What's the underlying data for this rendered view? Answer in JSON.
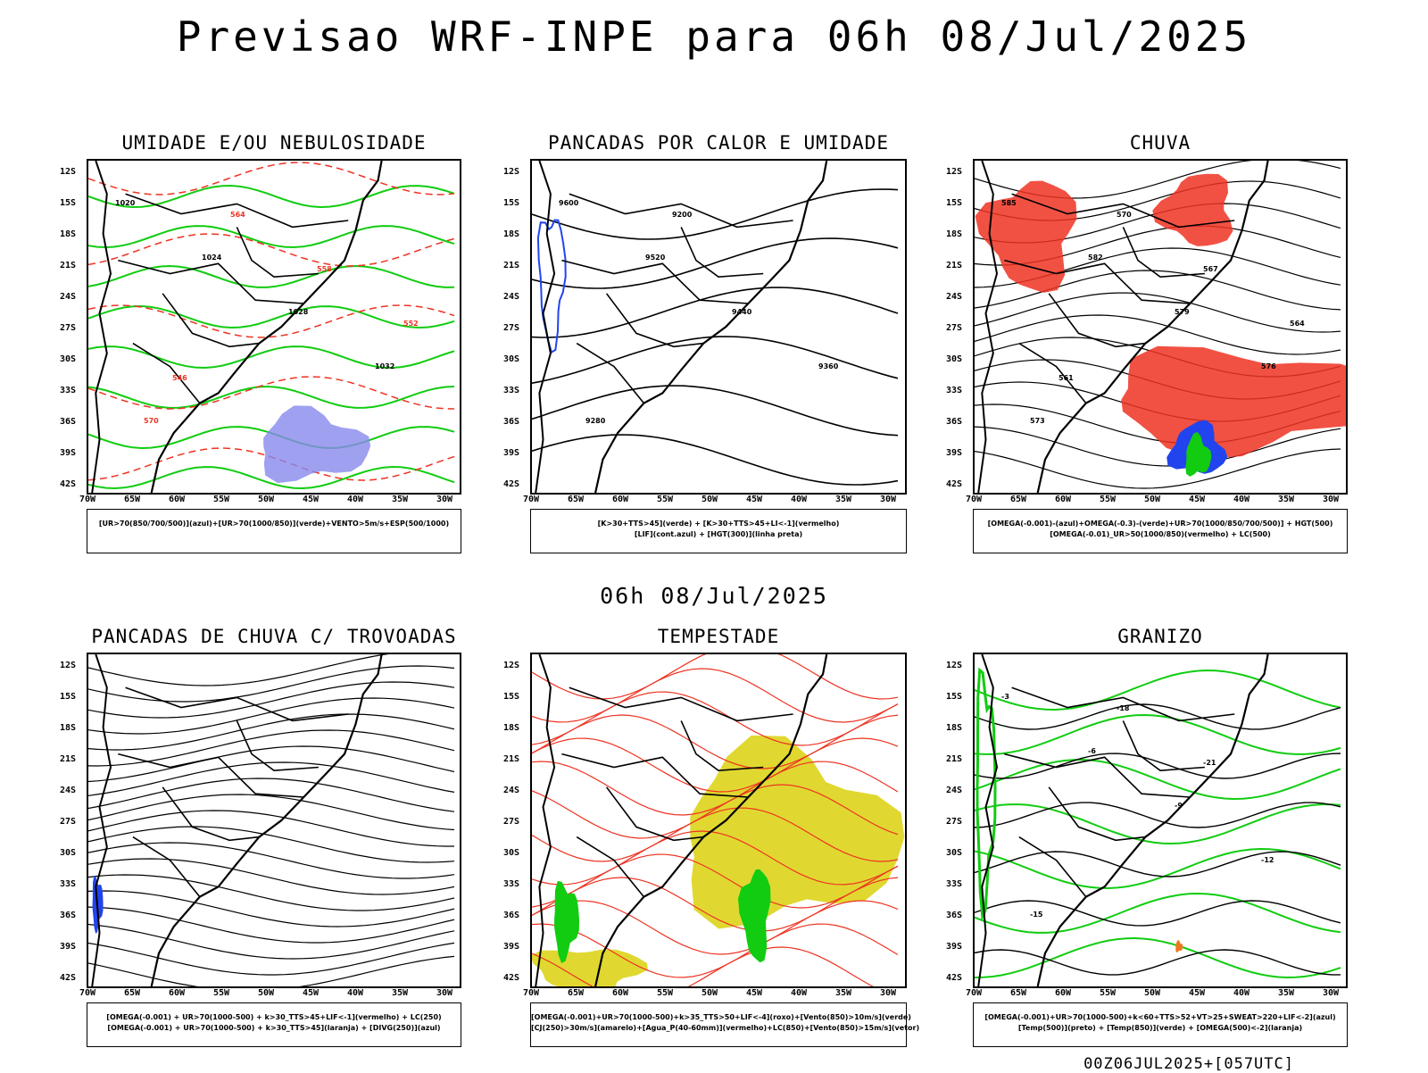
{
  "page": {
    "title": "Previsao WRF-INPE  para 06h 08/Jul/2025",
    "subtitle": "06h 08/Jul/2025",
    "footer": "00Z06JUL2025+[057UTC]"
  },
  "axes": {
    "lat_labels": [
      "12S",
      "15S",
      "18S",
      "21S",
      "24S",
      "27S",
      "30S",
      "33S",
      "36S",
      "39S",
      "42S"
    ],
    "lon_labels": [
      "70W",
      "65W",
      "60W",
      "55W",
      "50W",
      "45W",
      "40W",
      "35W",
      "30W"
    ]
  },
  "panels": [
    {
      "title": "UMIDADE E/OU NEBULOSIDADE",
      "legend": [
        "[UR>70(850/700/500)](azul)+[UR>70(1000/850)](verde)+VENTO>5m/s+ESP(500/1000)"
      ],
      "contour_labels": [
        "1020",
        "1024",
        "1028",
        "1032",
        "570",
        "564",
        "558",
        "552",
        "546"
      ]
    },
    {
      "title": "PANCADAS POR CALOR E UMIDADE",
      "legend": [
        "[K>30+TTS>45](verde) + [K>30+TTS>45+LI<-1](vermelho)",
        "[LIF](cont.azul) + [HGT(300)](linha preta)"
      ],
      "contour_labels": [
        "9600",
        "9520",
        "9440",
        "9360",
        "9280",
        "9200"
      ]
    },
    {
      "title": "CHUVA",
      "legend": [
        "[OMEGA(-0.001)-(azul)+OMEGA(-0.3)-(verde)+UR>70(1000/850/700/500)] + HGT(500)",
        "[OMEGA(-0.01)_UR>50(1000/850)(vermelho) + LC(500)"
      ],
      "contour_labels": [
        "585",
        "582",
        "579",
        "576",
        "573",
        "570",
        "567",
        "564",
        "561"
      ]
    },
    {
      "title": "PANCADAS DE CHUVA C/ TROVOADAS",
      "legend": [
        "[OMEGA(-0.001) + UR>70(1000-500) + k>30_TTS>45+LIF<-1](vermelho) + LC(250)",
        "[OMEGA(-0.001) + UR>70(1000-500) + k>30_TTS>45](laranja) + [DIVG(250)](azul)"
      ],
      "contour_labels": []
    },
    {
      "title": "TEMPESTADE",
      "legend": [
        "[OMEGA(-0.001)+UR>70(1000-500)+k>35_TTS>50+LIF<-4](roxo)+[Vento(850)>10m/s](verde)",
        "[CJ(250)>30m/s](amarelo)+[Agua_P(40-60mm)](vermelho)+LC(850)+[Vento(850)>15m/s](vetor)"
      ],
      "contour_labels": []
    },
    {
      "title": "GRANIZO",
      "legend": [
        "[OMEGA(-0.001)+UR>70(1000-500)+k<60+TTS>52+VT>25+SWEAT>220+LIF<-2](azul)",
        "[Temp(500)](preto) + [Temp(850)](verde) + [OMEGA(500)<-2](laranja)"
      ],
      "contour_labels": [
        "-3",
        "-6",
        "-9",
        "-12",
        "-15",
        "-18",
        "-21"
      ]
    }
  ],
  "colors": {
    "coast": "#000000",
    "green": "#11cc11",
    "red": "#ee3322",
    "blue": "#2244ee",
    "purple": "#8888ee",
    "yellow": "#e0d830",
    "orange": "#ee7722"
  }
}
